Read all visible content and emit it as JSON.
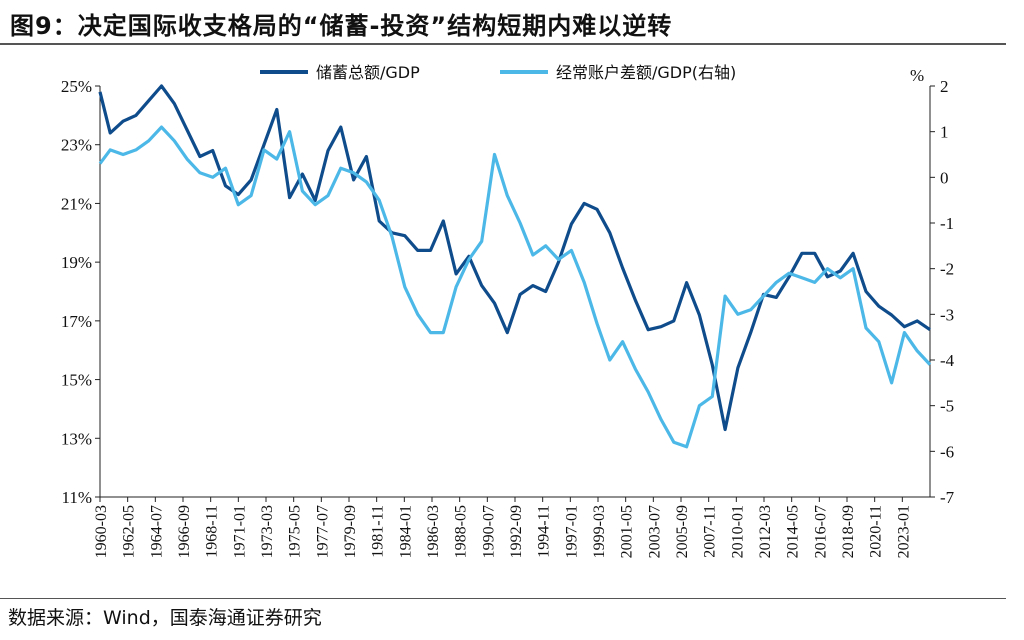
{
  "title": "图9：决定国际收支格局的“储蓄-投资”结构短期内难以逆转",
  "source": "数据来源：Wind，国泰海通证券研究",
  "colors": {
    "series1": "#0f4c8c",
    "series2": "#4cb8e8"
  },
  "chart_data": {
    "type": "line",
    "right_unit": "%",
    "y_left": {
      "min": 11,
      "max": 25,
      "ticks": [
        "11%",
        "13%",
        "15%",
        "17%",
        "19%",
        "21%",
        "23%",
        "25%"
      ]
    },
    "y_right": {
      "min": -7,
      "max": 2,
      "ticks": [
        "-7",
        "-6",
        "-5",
        "-4",
        "-3",
        "-2",
        "-1",
        "0",
        "1",
        "2"
      ]
    },
    "x_ticks": [
      "1960-03",
      "1962-05",
      "1964-07",
      "1966-09",
      "1968-11",
      "1971-01",
      "1973-03",
      "1975-05",
      "1977-07",
      "1979-09",
      "1981-11",
      "1984-01",
      "1986-03",
      "1988-05",
      "1990-07",
      "1992-09",
      "1994-11",
      "1997-01",
      "1999-03",
      "2001-05",
      "2003-07",
      "2005-09",
      "2007-11",
      "2010-01",
      "2012-03",
      "2014-05",
      "2016-07",
      "2018-09",
      "2020-11",
      "2023-01"
    ],
    "series": [
      {
        "name": "储蓄总额/GDP",
        "axis": "left",
        "x": [
          1960.2,
          1961,
          1962,
          1963,
          1964,
          1965,
          1966,
          1967,
          1968,
          1969,
          1970,
          1971,
          1972,
          1973,
          1974,
          1975,
          1976,
          1977,
          1978,
          1979,
          1980,
          1981,
          1982,
          1983,
          1984,
          1985,
          1986,
          1987,
          1988,
          1989,
          1990,
          1991,
          1992,
          1993,
          1994,
          1995,
          1996,
          1997,
          1998,
          1999,
          2000,
          2001,
          2002,
          2003,
          2004,
          2005,
          2006,
          2007,
          2008,
          2009,
          2010,
          2011,
          2012,
          2013,
          2014,
          2015,
          2016,
          2017,
          2018,
          2019,
          2020,
          2021,
          2022,
          2023,
          2024,
          2025
        ],
        "y": [
          24.8,
          23.4,
          23.8,
          24.0,
          24.5,
          25.0,
          24.4,
          23.5,
          22.6,
          22.8,
          21.6,
          21.3,
          21.8,
          23.0,
          24.2,
          21.2,
          22.0,
          21.1,
          22.8,
          23.6,
          21.8,
          22.6,
          20.4,
          20.0,
          19.9,
          19.4,
          19.4,
          20.4,
          18.6,
          19.2,
          18.2,
          17.6,
          16.6,
          17.9,
          18.2,
          18.0,
          19.0,
          20.3,
          21.0,
          20.8,
          20.0,
          18.8,
          17.7,
          16.7,
          16.8,
          17.0,
          18.3,
          17.2,
          15.5,
          13.3,
          15.4,
          16.6,
          17.9,
          17.8,
          18.5,
          19.3,
          19.3,
          18.5,
          18.7,
          19.3,
          18.0,
          17.5,
          17.2,
          16.8,
          17.0,
          16.7
        ]
      },
      {
        "name": "经常账户差额/GDP(右轴)",
        "axis": "right",
        "x": [
          1960.2,
          1961,
          1962,
          1963,
          1964,
          1965,
          1966,
          1967,
          1968,
          1969,
          1970,
          1971,
          1972,
          1973,
          1974,
          1975,
          1976,
          1977,
          1978,
          1979,
          1980,
          1981,
          1982,
          1983,
          1984,
          1985,
          1986,
          1987,
          1988,
          1989,
          1990,
          1991,
          1992,
          1993,
          1994,
          1995,
          1996,
          1997,
          1998,
          1999,
          2000,
          2001,
          2002,
          2003,
          2004,
          2005,
          2006,
          2007,
          2008,
          2009,
          2010,
          2011,
          2012,
          2013,
          2014,
          2015,
          2016,
          2017,
          2018,
          2019,
          2020,
          2021,
          2022,
          2023,
          2024,
          2025
        ],
        "y": [
          0.3,
          0.6,
          0.5,
          0.6,
          0.8,
          1.1,
          0.8,
          0.4,
          0.1,
          0.0,
          0.2,
          -0.6,
          -0.4,
          0.6,
          0.4,
          1.0,
          -0.3,
          -0.6,
          -0.4,
          0.2,
          0.1,
          -0.1,
          -0.5,
          -1.3,
          -2.4,
          -3.0,
          -3.4,
          -3.4,
          -2.4,
          -1.8,
          -1.4,
          0.5,
          -0.4,
          -1.0,
          -1.7,
          -1.5,
          -1.8,
          -1.6,
          -2.3,
          -3.2,
          -4.0,
          -3.6,
          -4.2,
          -4.7,
          -5.3,
          -5.8,
          -5.9,
          -5.0,
          -4.8,
          -2.6,
          -3.0,
          -2.9,
          -2.6,
          -2.3,
          -2.1,
          -2.2,
          -2.3,
          -2.0,
          -2.2,
          -2.0,
          -3.3,
          -3.6,
          -4.5,
          -3.4,
          -3.8,
          -4.1
        ]
      }
    ]
  }
}
